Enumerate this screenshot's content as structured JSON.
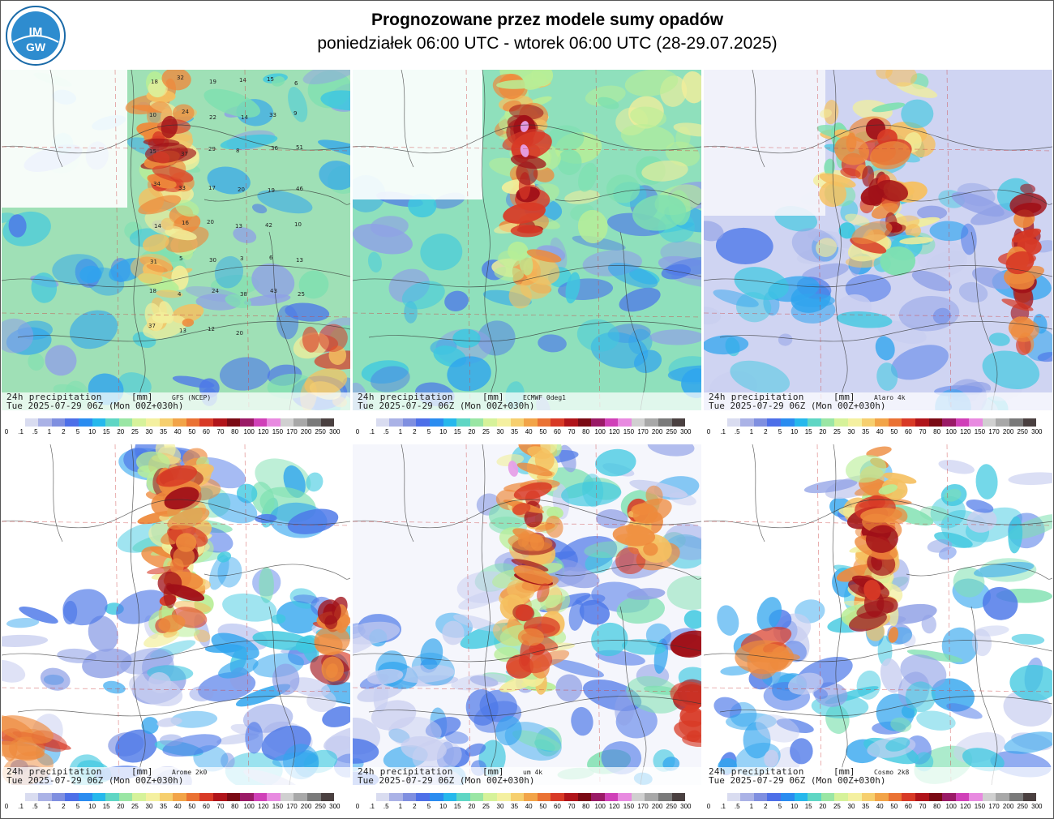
{
  "header": {
    "title": "Prognozowane przez modele sumy opadów",
    "subtitle": "poniedziałek 06:00 UTC - wtorek 06:00 UTC (28-29.07.2025)",
    "logo_text_top": "IM",
    "logo_text_bottom": "GW"
  },
  "legend": {
    "ticks": [
      "0",
      ".1",
      ".5",
      "1",
      "2",
      "5",
      "10",
      "15",
      "20",
      "25",
      "30",
      "35",
      "40",
      "50",
      "60",
      "70",
      "80",
      "100",
      "120",
      "150",
      "170",
      "200",
      "250",
      "300"
    ],
    "colors": [
      "#ffffff",
      "#d9dcf0",
      "#aab2e6",
      "#7f8fe0",
      "#4d6fe8",
      "#2a8cf0",
      "#26b8ec",
      "#5fd6c4",
      "#9ae6a4",
      "#d6f29a",
      "#f4f0a0",
      "#f6cf6e",
      "#f2a448",
      "#ea7233",
      "#d83a26",
      "#b0141a",
      "#7a0a14",
      "#9a1a66",
      "#d040b8",
      "#e88ae0",
      "#d0d0d0",
      "#a8a8a8",
      "#7a7a7a",
      "#4a4040"
    ]
  },
  "panels": [
    {
      "label": "24h precipitation",
      "unit": "[mm]",
      "model": "GFS (NCEP)",
      "valid": "Tue 2025-07-29 06Z (Mon 00Z+030h)"
    },
    {
      "label": "24h precipitation",
      "unit": "[mm]",
      "model": "ECMWF 0deg1",
      "valid": "Tue 2025-07-29 06Z (Mon 00Z+030h)"
    },
    {
      "label": "24h precipitation",
      "unit": "[mm]",
      "model": "Alaro 4k",
      "valid": "Tue 2025-07-29 06Z (Mon 00Z+030h)"
    },
    {
      "label": "24h precipitation",
      "unit": "[mm]",
      "model": "Arome 2k0",
      "valid": "Tue 2025-07-29 06Z (Mon 00Z+030h)"
    },
    {
      "label": "24h precipitation",
      "unit": "[mm]",
      "model": "um 4k",
      "valid": "Tue 2025-07-29 06Z (Mon 00Z+030h)"
    },
    {
      "label": "24h precipitation",
      "unit": "[mm]",
      "model": "Cosmo 2k8",
      "valid": "Tue 2025-07-29 06Z (Mon 00Z+030h)"
    }
  ],
  "gfs_grid_values": [
    "18",
    "32",
    "19",
    "14",
    "15",
    "6",
    "10",
    "24",
    "22",
    "14",
    "33",
    "9",
    "15",
    "37",
    "29",
    "8",
    "36",
    "51",
    "34",
    "33",
    "17",
    "20",
    "19",
    "46",
    "14",
    "16",
    "20",
    "13",
    "42",
    "10",
    "31",
    "5",
    "30",
    "3",
    "6",
    "13",
    "18",
    "4",
    "24",
    "38",
    "43",
    "25",
    "37",
    "13",
    "12",
    "20"
  ]
}
